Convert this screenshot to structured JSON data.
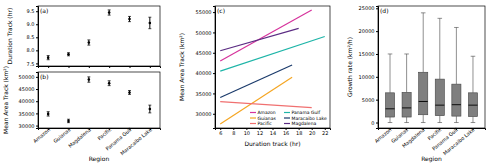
{
  "chart_data": [
    {
      "type": "errorbar",
      "title": "(a)",
      "ylabel": "Duration Track (hr)",
      "categories": [
        "Amazon",
        "Guianas",
        "Magdalena",
        "Pacific",
        "Panama Gulf",
        "Maracaibo Lake"
      ],
      "values": [
        7.72,
        7.85,
        8.3,
        9.45,
        9.2,
        9.05
      ],
      "errors": [
        0.08,
        0.06,
        0.1,
        0.1,
        0.1,
        0.22
      ],
      "color": "#000000",
      "ylim": [
        7.4,
        9.7
      ],
      "yticks": [
        7.5,
        {
          "value": 8,
          "label": "8.0"
        },
        8.5,
        {
          "value": 9,
          "label": "9.0"
        },
        9.5
      ],
      "tick_labels": "y"
    },
    {
      "type": "errorbar",
      "title": "(b)",
      "ylabel": "Mean Area Track (km²)",
      "xlabel": "Region",
      "categories": [
        "Amazon",
        "Guianas",
        "Magdalena",
        "Pacific",
        "Panama Gulf",
        "Maracaibo Lake"
      ],
      "values": [
        34800,
        31900,
        48900,
        47400,
        43600,
        36800
      ],
      "errors": [
        900,
        700,
        1100,
        1000,
        800,
        1600
      ],
      "color": "#000000",
      "ylim": [
        29000,
        52000
      ],
      "yticks": [
        30000,
        35000,
        40000,
        45000,
        50000
      ]
    },
    {
      "type": "line",
      "title": "(c)",
      "xlabel": "Duration track (hr)",
      "ylabel": "Mean Area Track (km²)",
      "series": [
        {
          "name": "Amazon",
          "color": "#d6339c",
          "x": [
            6,
            20
          ],
          "values": [
            43000,
            55500
          ]
        },
        {
          "name": "Guianas",
          "color": "#f5a623",
          "x": [
            6,
            17
          ],
          "values": [
            27500,
            39000
          ]
        },
        {
          "name": "Pacific",
          "color": "#f07070",
          "x": [
            6,
            20
          ],
          "values": [
            33000,
            31500
          ]
        },
        {
          "name": "Panama Gulf",
          "color": "#1fb5a8",
          "x": [
            6,
            22
          ],
          "values": [
            40500,
            49000
          ]
        },
        {
          "name": "Maracaibo Lake",
          "color": "#1a3a6b",
          "x": [
            6,
            17
          ],
          "values": [
            34000,
            42000
          ]
        },
        {
          "name": "Magdalena",
          "color": "#5b2c83",
          "x": [
            6,
            18
          ],
          "values": [
            45500,
            51000
          ]
        }
      ],
      "xlim": [
        5.2,
        22.8
      ],
      "xticks": [
        6,
        8,
        10,
        12,
        14,
        16,
        18,
        20,
        22
      ],
      "ylim": [
        26500,
        56500
      ],
      "yticks": [
        30000,
        35000,
        40000,
        45000,
        50000,
        55000
      ],
      "legend": "lower right"
    },
    {
      "type": "box",
      "title": "(d)",
      "ylabel": "Growth rate (km²/h)",
      "xlabel": "Region",
      "categories": [
        "Amazon",
        "Guianas",
        "Magdalena",
        "Pacific",
        "Panama Gulf",
        "Maracaibo Lake"
      ],
      "min": [
        0,
        0,
        0,
        0,
        0,
        0
      ],
      "q1": [
        1200,
        1200,
        1700,
        1500,
        1400,
        1300
      ],
      "median": [
        3000,
        3200,
        4600,
        3800,
        3900,
        3800
      ],
      "q3": [
        6500,
        6600,
        11000,
        9500,
        8400,
        6500
      ],
      "max": [
        15000,
        15000,
        24000,
        22800,
        20800,
        14500
      ],
      "color": "#7f7f7f",
      "ylim": [
        -1200,
        25500
      ],
      "yticks": [
        0,
        5000,
        10000,
        15000,
        20000,
        25000
      ]
    }
  ]
}
